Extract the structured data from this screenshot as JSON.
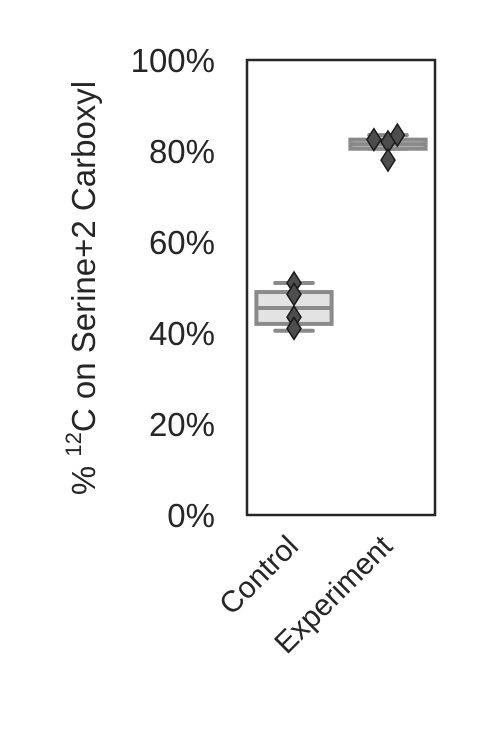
{
  "chart_data": {
    "type": "box",
    "ylabel": {
      "prefix": "% ",
      "superscript": "12",
      "suffix": "C on Serine+2 Carboxyl"
    },
    "ylim": [
      0,
      100
    ],
    "yticks": [
      0,
      20,
      40,
      60,
      80,
      100
    ],
    "ytick_labels": [
      "0%",
      "20%",
      "40%",
      "60%",
      "80%",
      "100%"
    ],
    "grid": false,
    "categories": [
      "Control",
      "Experiment"
    ],
    "boxes": [
      {
        "category": "Control",
        "whislo": 40.5,
        "q1": 42.0,
        "median": 45.5,
        "q3": 49.0,
        "whishi": 51.0,
        "fill": "#e3e3e3"
      },
      {
        "category": "Experiment",
        "whislo": 80.5,
        "q1": 80.5,
        "median": 81.5,
        "q3": 82.5,
        "whishi": 83.5,
        "fill": "#c8c8c8"
      }
    ],
    "points": [
      {
        "category": "Control",
        "offset": 0.0,
        "y": 51.0
      },
      {
        "category": "Control",
        "offset": 0.0,
        "y": 48.5
      },
      {
        "category": "Control",
        "offset": 0.0,
        "y": 43.5
      },
      {
        "category": "Control",
        "offset": 0.0,
        "y": 41.0
      },
      {
        "category": "Experiment",
        "offset": -0.15,
        "y": 82.5
      },
      {
        "category": "Experiment",
        "offset": 0.0,
        "y": 82.0
      },
      {
        "category": "Experiment",
        "offset": 0.1,
        "y": 83.5
      },
      {
        "category": "Experiment",
        "offset": 0.0,
        "y": 78.0
      }
    ],
    "colors": {
      "box_edge": "#8a8a8a",
      "point_fill": "#4d4d4d",
      "point_edge": "#1a1a1a",
      "axis": "#262626"
    }
  }
}
